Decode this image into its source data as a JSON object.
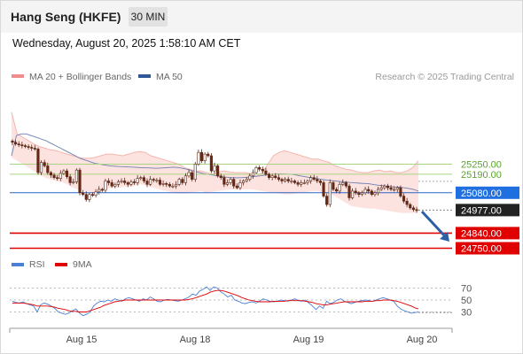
{
  "header": {
    "title": "Hang Seng (HKFE)",
    "interval": "30 MIN",
    "datetime": "Wednesday, August 20, 2025 1:58:10 AM CET"
  },
  "chart_data": {
    "type": "candlestick",
    "copyright": "Research © 2025 Trading Central",
    "legend": [
      {
        "name": "MA 20 + Bollinger Bands",
        "color": "#f08c8c"
      },
      {
        "name": "MA 50",
        "color": "#2e5896"
      }
    ],
    "x_labels": [
      "Aug 15",
      "Aug 18",
      "Aug 19",
      "Aug 20"
    ],
    "price_axis": {
      "min": 24700,
      "max": 25700
    },
    "levels": [
      {
        "label": "25250.00",
        "value": 25250,
        "color": "#7fbf3a",
        "style": "resistance"
      },
      {
        "label": "25190.00",
        "value": 25190,
        "color": "#7fbf3a",
        "style": "resistance"
      },
      {
        "label": "25080.00",
        "value": 25080,
        "color": "#1f6fe0",
        "style": "pivot"
      },
      {
        "label": "24977.00",
        "value": 24977,
        "color": "#222222",
        "style": "last"
      },
      {
        "label": "24840.00",
        "value": 24840,
        "color": "#e00000",
        "style": "support"
      },
      {
        "label": "24750.00",
        "value": 24750,
        "color": "#e00000",
        "style": "support"
      }
    ],
    "closes": [
      25380,
      25370,
      25365,
      25360,
      25355,
      25350,
      25345,
      25340,
      25200,
      25260,
      25240,
      25200,
      25185,
      25170,
      25165,
      25195,
      25210,
      25175,
      25140,
      25145,
      25215,
      25080,
      25070,
      25040,
      25070,
      25065,
      25085,
      25100,
      25095,
      25150,
      25140,
      25120,
      25130,
      25145,
      25150,
      25140,
      25130,
      25145,
      25140,
      25165,
      25170,
      25150,
      25130,
      25160,
      25155,
      25155,
      25130,
      25135,
      25130,
      25120,
      25120,
      25130,
      25160,
      25140,
      25180,
      25200,
      25160,
      25250,
      25320,
      25270,
      25310,
      25300,
      25210,
      25240,
      25180,
      25170,
      25130,
      25140,
      25160,
      25120,
      25110,
      25140,
      25150,
      25160,
      25180,
      25200,
      25230,
      25220,
      25210,
      25190,
      25170,
      25180,
      25170,
      25160,
      25150,
      25160,
      25150,
      25150,
      25140,
      25130,
      25140,
      25140,
      25150,
      25170,
      25160,
      25150,
      25140,
      25060,
      25010,
      25140,
      25100,
      25090,
      25130,
      25140,
      25120,
      25050,
      25090,
      25080,
      25070,
      25080,
      25100,
      25090,
      25070,
      25080,
      25100,
      25110,
      25120,
      25110,
      25100,
      25100,
      25110,
      25060,
      25030,
      25010,
      24990,
      24980,
      24977
    ],
    "ma50": [
      25300,
      25420,
      25430,
      25430,
      25420,
      25410,
      25400,
      25390,
      25375,
      25360,
      25345,
      25330,
      25315,
      25300,
      25285,
      25275,
      25265,
      25255,
      25250,
      25245,
      25240,
      25238,
      25236,
      25235,
      25233,
      25232,
      25230,
      25228,
      25228,
      25226,
      25226,
      25228,
      25230,
      25232,
      25230,
      25225,
      25218,
      25210,
      25203,
      25195,
      25190,
      25186,
      25180,
      25175,
      25172,
      25170,
      25169,
      25170,
      25172,
      25175,
      25178,
      25182,
      25186,
      25190,
      25192,
      25192,
      25191,
      25190,
      25186,
      25180,
      25175,
      25170,
      25165,
      25161,
      25157,
      25153,
      25150,
      25147,
      25145,
      25141,
      25139,
      25137,
      25135,
      25133,
      25128,
      25124,
      25122,
      25118,
      25115,
      25113,
      25110,
      25106,
      25100,
      25090
    ],
    "bb_upper": [
      25560,
      25430,
      25410,
      25390,
      25370,
      25355,
      25345,
      25335,
      25330,
      25320,
      25310,
      25300,
      25290,
      25285,
      25285,
      25290,
      25300,
      25310,
      25310,
      25305,
      25300,
      25310,
      25320,
      25325,
      25320,
      25300,
      25290,
      25280,
      25270,
      25260,
      25250,
      25230,
      25220,
      25210,
      25210,
      25200,
      25190,
      25200,
      25210,
      25205,
      25200,
      25200,
      25200,
      25190,
      25180,
      25200,
      25250,
      25300,
      25320,
      25330,
      25320,
      25310,
      25300,
      25290,
      25280,
      25280,
      25270,
      25260,
      25240,
      25230,
      25220,
      25215,
      25205,
      25200,
      25200,
      25210,
      25215,
      25205,
      25210,
      25200,
      25200,
      25210,
      25230,
      25270
    ],
    "bb_lower": [
      25290,
      25270,
      25250,
      25230,
      25210,
      25190,
      25170,
      25160,
      25150,
      25145,
      25130,
      25110,
      25100,
      25090,
      25085,
      25080,
      25085,
      25100,
      25110,
      25110,
      25115,
      25115,
      25120,
      25130,
      25125,
      25115,
      25105,
      25095,
      25090,
      25080,
      25075,
      25075,
      25080,
      25085,
      25090,
      25080,
      25085,
      25090,
      25095,
      25100,
      25100,
      25100,
      25100,
      25100,
      25095,
      25090,
      25085,
      25080,
      25075,
      25070,
      25070,
      25075,
      25080,
      25085,
      25090,
      25090,
      25080,
      25070,
      25060,
      25040,
      25020,
      25000,
      24995,
      24990,
      24985,
      24985,
      24980,
      24975,
      24970,
      24965,
      24960,
      24960,
      24960,
      24960
    ],
    "rsi_panel": {
      "legend": [
        {
          "name": "RSI",
          "color": "#4a7fd6"
        },
        {
          "name": "9MA",
          "color": "#e00000"
        }
      ],
      "levels": [
        70,
        50,
        30
      ],
      "axis_labels": [
        "70",
        "50",
        "30"
      ],
      "range": [
        10,
        90
      ],
      "rsi": [
        48,
        46,
        45,
        47,
        44,
        42,
        40,
        30,
        42,
        45,
        43,
        40,
        36,
        30,
        28,
        26,
        28,
        32,
        35,
        28,
        24,
        26,
        30,
        40,
        45,
        48,
        47,
        50,
        48,
        52,
        50,
        48,
        52,
        54,
        52,
        50,
        48,
        52,
        50,
        55,
        52,
        48,
        47,
        50,
        51,
        50,
        49,
        48,
        50,
        52,
        55,
        60,
        58,
        65,
        68,
        72,
        66,
        72,
        70,
        64,
        60,
        55,
        58,
        50,
        48,
        45,
        44,
        46,
        47,
        45,
        48,
        52,
        50,
        48,
        47,
        48,
        50,
        49,
        48,
        50,
        52,
        49,
        48,
        50,
        45,
        40,
        34,
        40,
        36,
        48,
        44,
        46,
        50,
        52,
        48,
        46,
        44,
        46,
        48,
        49,
        50,
        49,
        48,
        50,
        52,
        54,
        52,
        50,
        48,
        40,
        35,
        32,
        30,
        28,
        29,
        30
      ],
      "ma9": [
        45,
        45,
        45,
        45,
        44,
        43,
        42,
        40,
        40,
        40,
        40,
        39,
        38,
        36,
        35,
        34,
        32,
        31,
        31,
        30,
        30,
        30,
        32,
        34,
        36,
        38,
        41,
        43,
        45,
        47,
        48,
        49,
        50,
        50,
        50,
        50,
        50,
        50,
        50,
        50,
        50,
        50,
        50,
        50,
        50,
        50,
        50,
        50,
        50,
        50,
        51,
        52,
        54,
        56,
        58,
        60,
        63,
        65,
        66,
        66,
        65,
        63,
        61,
        59,
        57,
        54,
        52,
        50,
        49,
        48,
        47,
        47,
        47,
        47,
        48,
        48,
        48,
        48,
        49,
        49,
        49,
        49,
        49,
        48,
        47,
        46,
        44,
        43,
        42,
        42,
        43,
        44,
        45,
        46,
        47,
        47,
        47,
        47,
        47,
        47,
        48,
        48,
        48,
        49,
        49,
        50,
        50,
        50,
        49,
        48,
        46,
        44,
        42,
        40,
        37,
        35
      ]
    }
  }
}
